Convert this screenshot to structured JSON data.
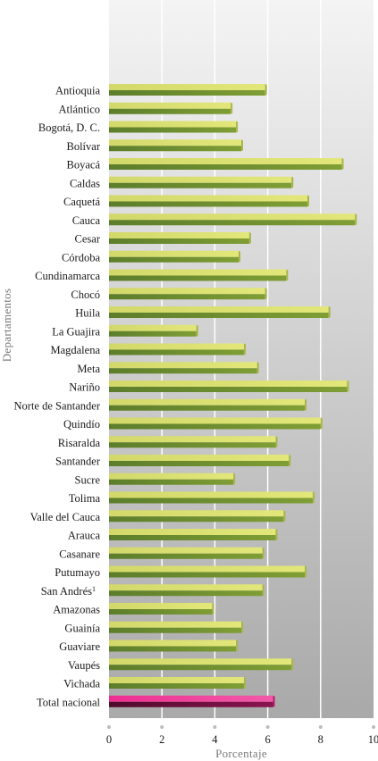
{
  "chart_data": {
    "type": "bar",
    "orientation": "horizontal",
    "xlabel": "Porcentaje",
    "ylabel": "Departamentos",
    "xlim": [
      0,
      10
    ],
    "xticks": [
      "0",
      "2",
      "4",
      "6",
      "8",
      "10"
    ],
    "grid": "vertical",
    "categories": [
      "Antioquia",
      "Atlántico",
      "Bogotá, D. C.",
      "Bolívar",
      "Boyacá",
      "Caldas",
      "Caquetá",
      "Cauca",
      "Cesar",
      "Córdoba",
      "Cundinamarca",
      "Chocó",
      "Huila",
      "La Guajira",
      "Magdalena",
      "Meta",
      "Nariño",
      "Norte de Santander",
      "Quindío",
      "Risaralda",
      "Santander",
      "Sucre",
      "Tolima",
      "Valle del Cauca",
      "Arauca",
      "Casanare",
      "Putumayo",
      "San Andrés",
      "Amazonas",
      "Guainía",
      "Guaviare",
      "Vaupés",
      "Vichada",
      "Total nacional"
    ],
    "category_superscripts": {
      "San Andrés": "1"
    },
    "values": [
      5.9,
      4.6,
      4.8,
      5.0,
      8.8,
      6.9,
      7.5,
      9.3,
      5.3,
      4.9,
      6.7,
      5.9,
      8.3,
      3.3,
      5.1,
      5.6,
      9.0,
      7.4,
      8.0,
      6.3,
      6.8,
      4.7,
      7.7,
      6.6,
      6.3,
      5.8,
      7.4,
      5.8,
      3.9,
      5.0,
      4.8,
      6.9,
      5.1,
      6.2
    ],
    "highlight": "Total nacional",
    "colors": {
      "bar_top": "#d8de6a",
      "bar_bottom": "#62852f",
      "highlight_top": "#ee2f92",
      "highlight_bottom": "#6e0f3c",
      "plot_bg_top": "#f4f4f4",
      "plot_bg_bottom": "#a9a9a9",
      "grid": "#ffffff"
    }
  }
}
